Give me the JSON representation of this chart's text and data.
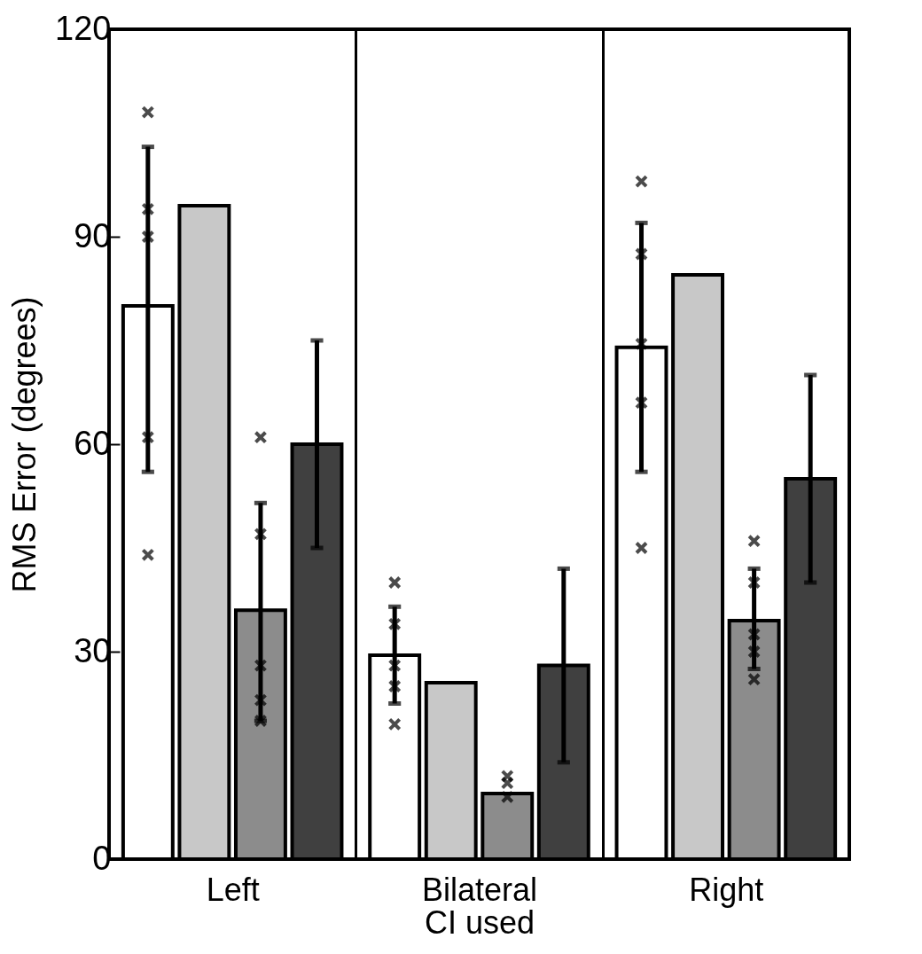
{
  "chart_data": {
    "type": "bar",
    "xlabel": "CI used",
    "ylabel": "RMS Error (degrees)",
    "categories": [
      "Left",
      "Bilateral",
      "Right"
    ],
    "ylim": [
      0,
      120
    ],
    "yticks": [
      0,
      30,
      60,
      90,
      120
    ],
    "grid": "x",
    "legend": false,
    "series": [
      {
        "color": "#ffffff",
        "values": [
          80,
          29.5,
          74
        ],
        "errors": [
          [
            56,
            103
          ],
          [
            22.5,
            36.5
          ],
          [
            56,
            92
          ]
        ]
      },
      {
        "type": "scatter",
        "color": "#000000",
        "marker": "cross",
        "x": [
          "Left",
          "Left",
          "Left",
          "Left",
          "Left",
          "Bilateral",
          "Bilateral",
          "Bilateral",
          "Bilateral",
          "Bilateral",
          "Right",
          "Right",
          "Right",
          "Right",
          "Right"
        ],
        "values": [
          108,
          94,
          90,
          61,
          44,
          40,
          34,
          28,
          25,
          19.5,
          98,
          87.5,
          74.5,
          66,
          45
        ]
      },
      {
        "color": "#c8c8c8",
        "values": [
          94.5,
          25.5,
          84.5
        ]
      },
      {
        "color": "#8c8c8c",
        "values": [
          36,
          9.5,
          34.5
        ],
        "errors": [
          [
            20,
            51.5
          ],
          null,
          [
            27.5,
            42
          ]
        ]
      },
      {
        "type": "scatter",
        "color": "#000000",
        "marker": "cross",
        "x": [
          "Left",
          "Left",
          "Left",
          "Left",
          "Left",
          "Bilateral",
          "Bilateral",
          "Bilateral",
          "Right",
          "Right",
          "Right",
          "Right",
          "Right"
        ],
        "values": [
          61,
          47,
          28,
          23,
          20,
          12,
          11,
          9,
          46,
          40,
          32.5,
          30,
          26
        ]
      },
      {
        "color": "#404040",
        "values": [
          60,
          28,
          55
        ],
        "errors": [
          [
            45,
            75
          ],
          [
            14,
            42
          ],
          [
            40,
            70
          ]
        ]
      }
    ]
  }
}
